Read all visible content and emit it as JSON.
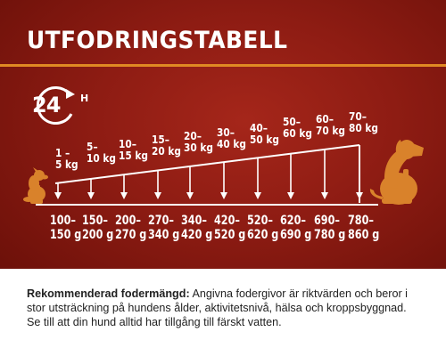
{
  "title": "UTFODRINGSTABELL",
  "timer": {
    "hours": "24",
    "unit": "H",
    "icon": "clock-24h-icon"
  },
  "colors": {
    "background": "#8e1c13",
    "accent": "#e08a23",
    "dog": "#d9822b",
    "text": "#ffffff"
  },
  "weights": [
    {
      "line1": "1 –",
      "line2": "5 kg"
    },
    {
      "line1": "5–",
      "line2": "10 kg"
    },
    {
      "line1": "10–",
      "line2": "15 kg"
    },
    {
      "line1": "15–",
      "line2": "20 kg"
    },
    {
      "line1": "20–",
      "line2": "30 kg"
    },
    {
      "line1": "30–",
      "line2": "40 kg"
    },
    {
      "line1": "40–",
      "line2": "50 kg"
    },
    {
      "line1": "50–",
      "line2": "60 kg"
    },
    {
      "line1": "60–",
      "line2": "70 kg"
    },
    {
      "line1": "70–",
      "line2": "80 kg"
    }
  ],
  "grams": [
    {
      "line1": "100–",
      "line2": "150 g"
    },
    {
      "line1": "150–",
      "line2": "200 g"
    },
    {
      "line1": "200–",
      "line2": "270 g"
    },
    {
      "line1": "270–",
      "line2": "340 g"
    },
    {
      "line1": "340–",
      "line2": "420 g"
    },
    {
      "line1": "420–",
      "line2": "520 g"
    },
    {
      "line1": "520–",
      "line2": "620 g"
    },
    {
      "line1": "620–",
      "line2": "690 g"
    },
    {
      "line1": "690–",
      "line2": "780 g"
    },
    {
      "line1": "780–",
      "line2": "860 g"
    }
  ],
  "note": {
    "bold": "Rekommenderad fodermängd:",
    "text": " Angivna fodergivor är riktvärden och beror i stor utsträckning på hundens ålder, aktivitetsnivå, hälsa och kroppsbyggnad. Se till att din hund alltid har tillgång till färskt vatten."
  }
}
